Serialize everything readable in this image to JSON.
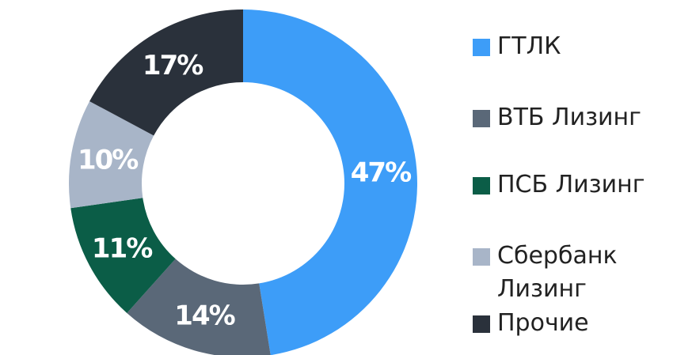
{
  "chart_data": {
    "type": "donut",
    "categories": [
      "ГТЛК",
      "ВТБ Лизинг",
      "ПСБ Лизинг",
      "Сбербанк Лизинг",
      "Прочие"
    ],
    "values": [
      47,
      14,
      11,
      10,
      17
    ],
    "value_labels": [
      "47%",
      "14%",
      "11%",
      "10%",
      "17%"
    ],
    "colors": [
      "#3d9df8",
      "#5a6878",
      "#0b5d47",
      "#a8b5c8",
      "#2a313b"
    ],
    "legend": "right"
  }
}
